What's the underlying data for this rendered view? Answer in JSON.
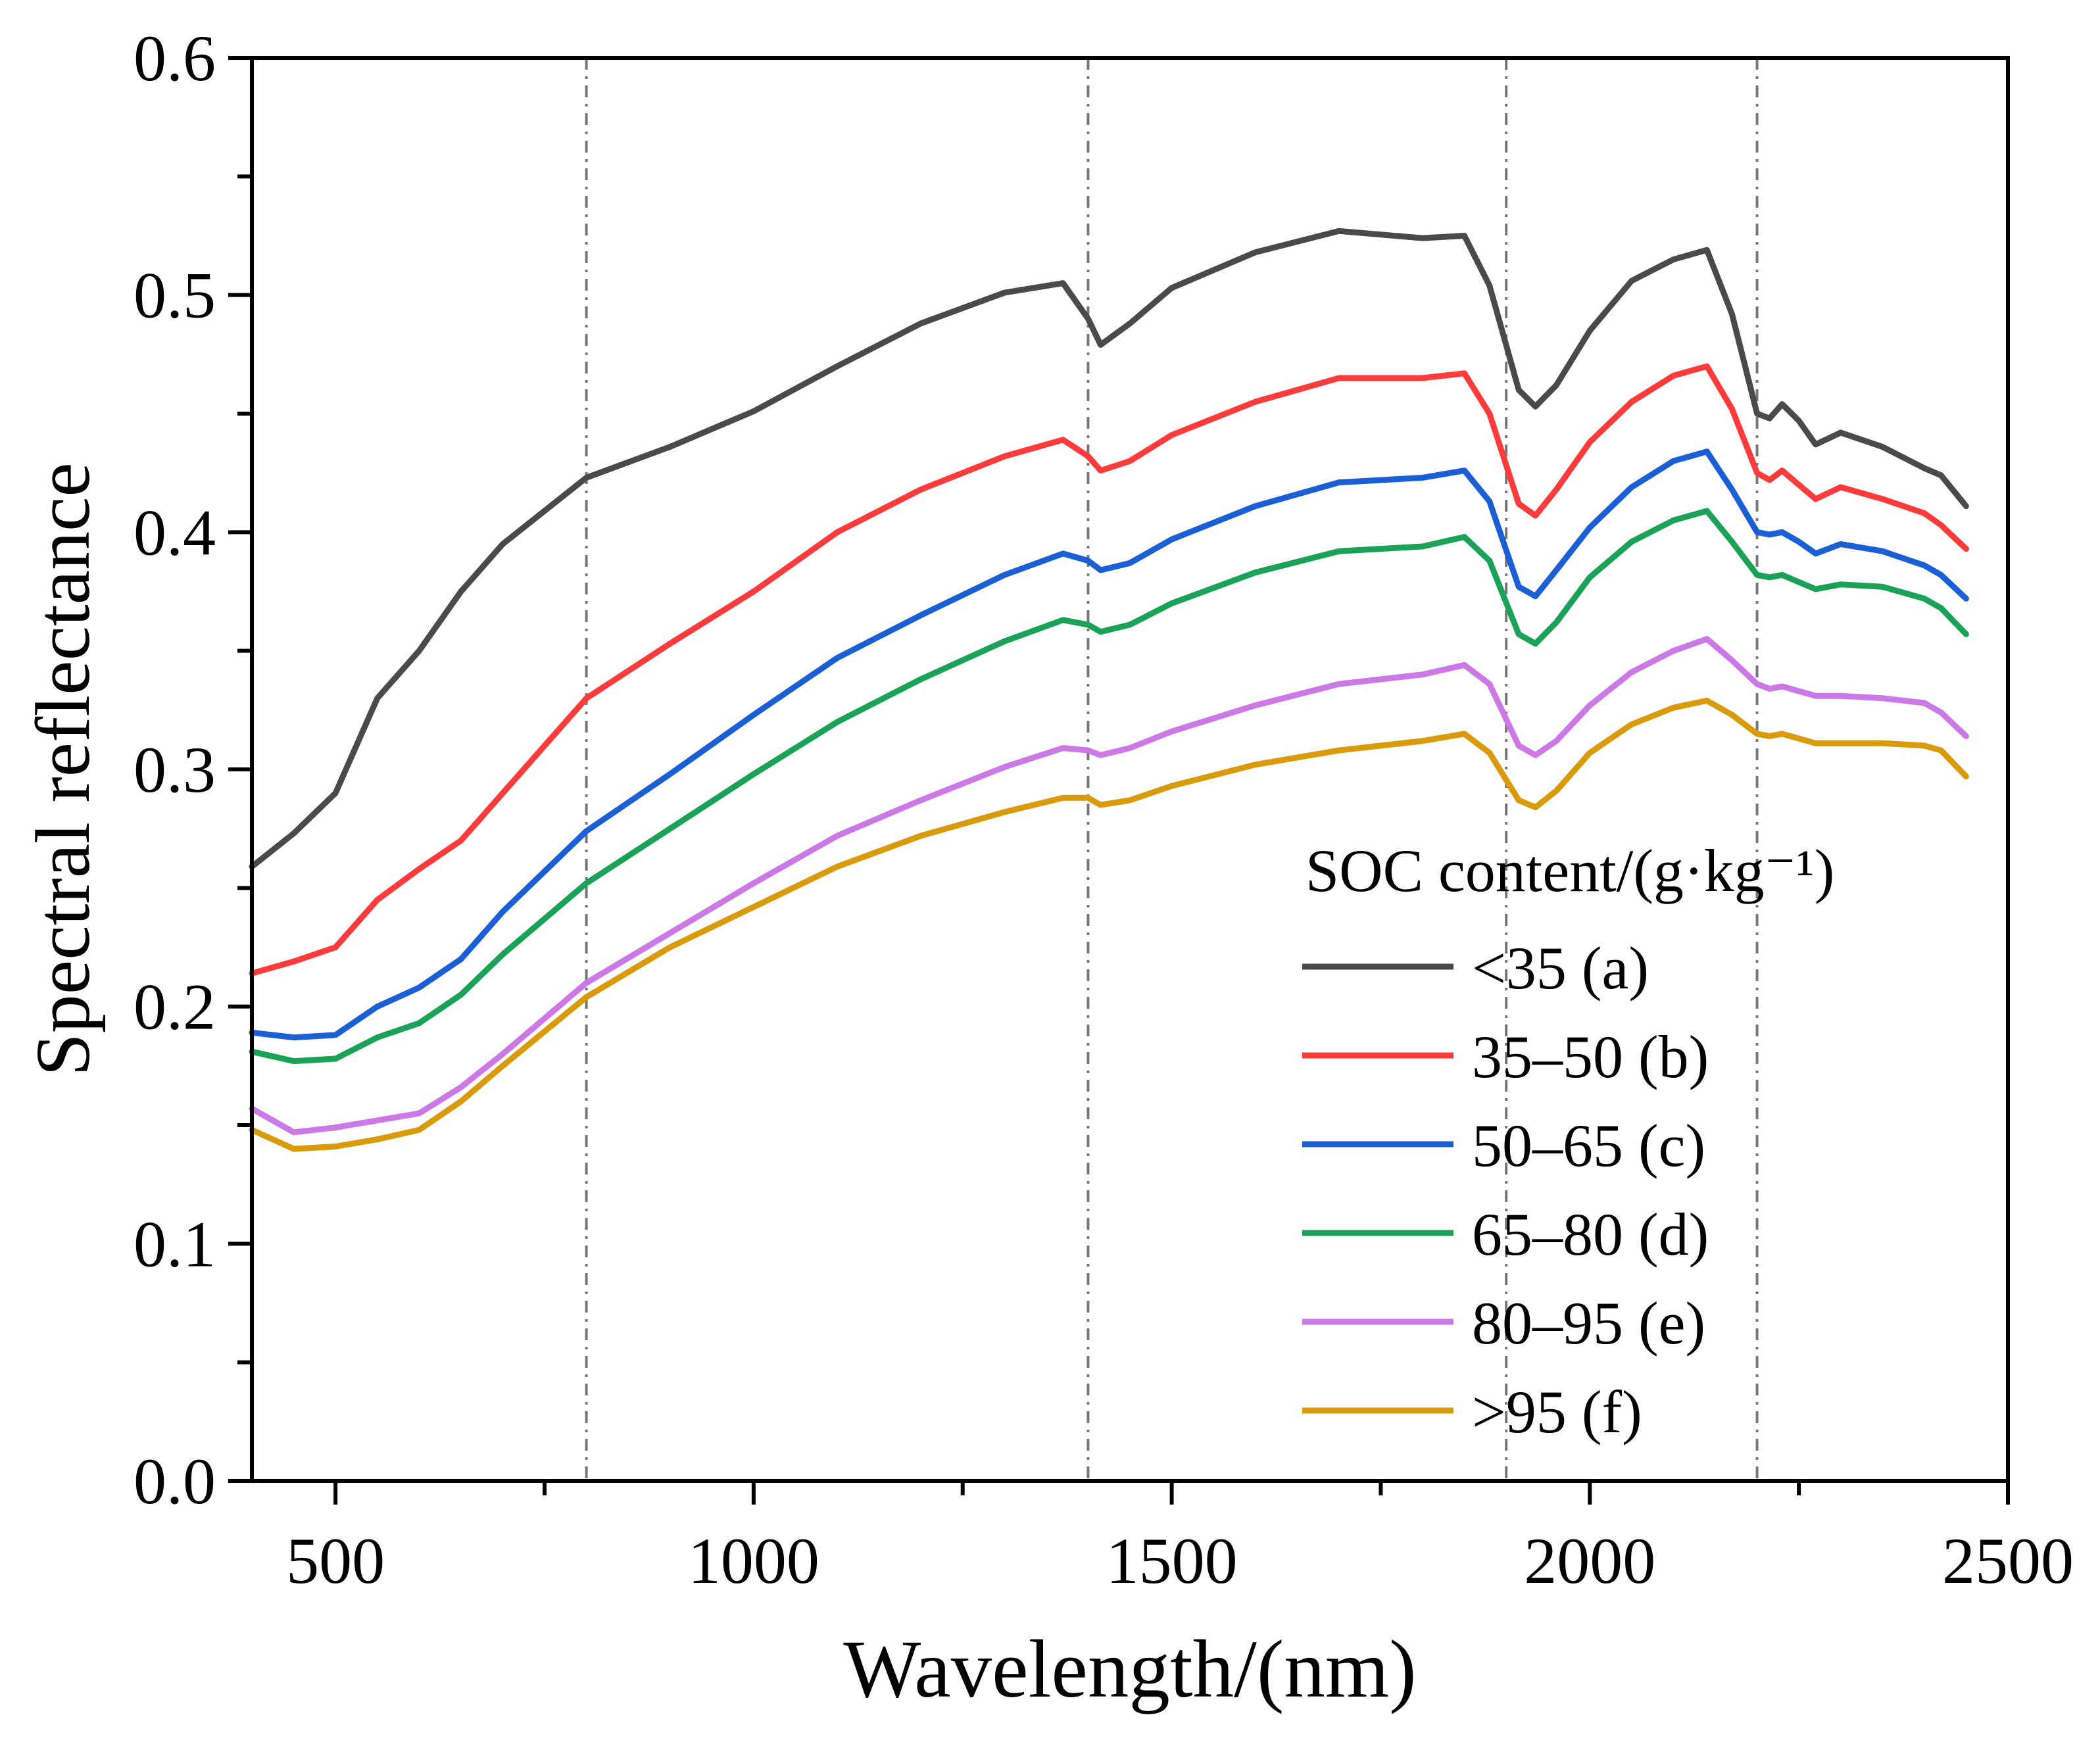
{
  "chart_data": {
    "type": "line",
    "title": "",
    "xlabel": "Wavelength/(nm)",
    "ylabel": "Spectral reflectance",
    "xlim": [
      400,
      2500
    ],
    "ylim": [
      0,
      0.6
    ],
    "xticks": [
      500,
      1000,
      1500,
      2000,
      2500
    ],
    "xtick_labels": [
      "500",
      "1000",
      "1500",
      "2000",
      "2500"
    ],
    "yticks": [
      0.0,
      0.1,
      0.2,
      0.3,
      0.4,
      0.5,
      0.6
    ],
    "ytick_labels": [
      "0.0",
      "0.1",
      "0.2",
      "0.3",
      "0.4",
      "0.5",
      "0.6"
    ],
    "reference_lines_x": [
      800,
      1400,
      1900,
      2200
    ],
    "grid": false,
    "legend": {
      "title": "SOC content/(g·kg⁻¹)",
      "placement": "bottom-right"
    },
    "x": [
      400,
      450,
      500,
      550,
      600,
      650,
      700,
      800,
      900,
      1000,
      1100,
      1200,
      1300,
      1370,
      1400,
      1415,
      1450,
      1500,
      1600,
      1700,
      1800,
      1850,
      1880,
      1915,
      1935,
      1960,
      2000,
      2050,
      2100,
      2140,
      2170,
      2200,
      2215,
      2230,
      2250,
      2270,
      2300,
      2350,
      2400,
      2420,
      2450
    ],
    "series": [
      {
        "name": "<35  (a)",
        "color": "#4a4a4a",
        "values": [
          0.259,
          0.273,
          0.29,
          0.33,
          0.35,
          0.375,
          0.395,
          0.423,
          0.436,
          0.451,
          0.47,
          0.488,
          0.501,
          0.505,
          0.49,
          0.479,
          0.488,
          0.503,
          0.518,
          0.527,
          0.524,
          0.525,
          0.504,
          0.46,
          0.453,
          0.462,
          0.485,
          0.506,
          0.515,
          0.519,
          0.492,
          0.45,
          0.448,
          0.454,
          0.447,
          0.437,
          0.442,
          0.436,
          0.427,
          0.424,
          0.411
        ]
      },
      {
        "name": "35–50 (b)",
        "color": "#ff3b3b",
        "values": [
          0.214,
          0.219,
          0.225,
          0.245,
          0.258,
          0.27,
          0.29,
          0.33,
          0.353,
          0.375,
          0.4,
          0.418,
          0.432,
          0.439,
          0.432,
          0.426,
          0.43,
          0.441,
          0.455,
          0.465,
          0.465,
          0.467,
          0.45,
          0.412,
          0.407,
          0.418,
          0.438,
          0.455,
          0.466,
          0.47,
          0.452,
          0.425,
          0.422,
          0.426,
          0.42,
          0.414,
          0.419,
          0.414,
          0.408,
          0.403,
          0.393
        ]
      },
      {
        "name": "50–65 (c)",
        "color": "#1a5fd6",
        "values": [
          0.189,
          0.187,
          0.188,
          0.2,
          0.208,
          0.22,
          0.24,
          0.274,
          0.298,
          0.323,
          0.347,
          0.365,
          0.382,
          0.391,
          0.388,
          0.384,
          0.387,
          0.397,
          0.411,
          0.421,
          0.423,
          0.426,
          0.413,
          0.377,
          0.373,
          0.384,
          0.402,
          0.419,
          0.43,
          0.434,
          0.418,
          0.4,
          0.399,
          0.4,
          0.396,
          0.391,
          0.395,
          0.392,
          0.386,
          0.382,
          0.372
        ]
      },
      {
        "name": "65–80 (d)",
        "color": "#1aa356",
        "values": [
          0.181,
          0.177,
          0.178,
          0.187,
          0.193,
          0.205,
          0.222,
          0.252,
          0.275,
          0.298,
          0.32,
          0.338,
          0.354,
          0.363,
          0.361,
          0.358,
          0.361,
          0.37,
          0.383,
          0.392,
          0.394,
          0.398,
          0.388,
          0.357,
          0.353,
          0.362,
          0.381,
          0.396,
          0.405,
          0.409,
          0.396,
          0.382,
          0.381,
          0.382,
          0.379,
          0.376,
          0.378,
          0.377,
          0.372,
          0.368,
          0.357
        ]
      },
      {
        "name": "80–95 (e)",
        "color": "#cc78e6",
        "values": [
          0.157,
          0.147,
          0.149,
          0.152,
          0.155,
          0.166,
          0.18,
          0.21,
          0.231,
          0.252,
          0.272,
          0.287,
          0.301,
          0.309,
          0.308,
          0.306,
          0.309,
          0.316,
          0.327,
          0.336,
          0.34,
          0.344,
          0.336,
          0.31,
          0.306,
          0.312,
          0.327,
          0.341,
          0.35,
          0.355,
          0.346,
          0.336,
          0.334,
          0.335,
          0.333,
          0.331,
          0.331,
          0.33,
          0.328,
          0.324,
          0.314
        ]
      },
      {
        "name": ">95 (f)",
        "color": "#d99b0b",
        "values": [
          0.148,
          0.14,
          0.141,
          0.144,
          0.148,
          0.16,
          0.175,
          0.204,
          0.225,
          0.242,
          0.259,
          0.272,
          0.282,
          0.288,
          0.288,
          0.285,
          0.287,
          0.293,
          0.302,
          0.308,
          0.312,
          0.315,
          0.307,
          0.287,
          0.284,
          0.291,
          0.307,
          0.319,
          0.326,
          0.329,
          0.323,
          0.315,
          0.314,
          0.315,
          0.313,
          0.311,
          0.311,
          0.311,
          0.31,
          0.308,
          0.297
        ]
      }
    ]
  }
}
